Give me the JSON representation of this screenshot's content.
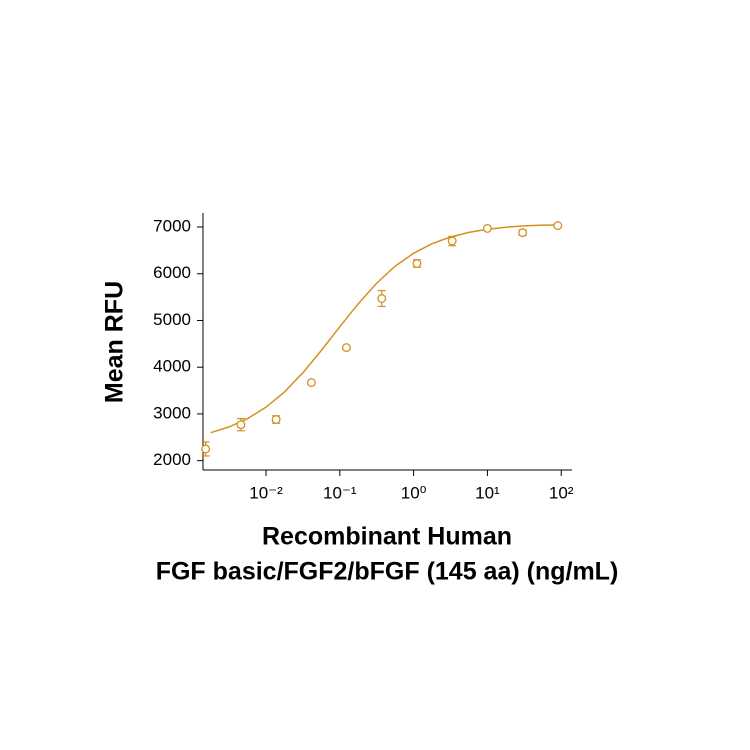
{
  "chart_data": {
    "type": "scatter",
    "ylabel": "Mean RFU",
    "xlabel": [
      "Recombinant Human",
      "FGF basic/FGF2/bFGF (145 aa) (ng/mL)"
    ],
    "xscale": "log",
    "color": "#d4911f",
    "x": [
      0.00152,
      0.00457,
      0.0137,
      0.0412,
      0.123,
      0.37,
      1.11,
      3.33,
      10,
      30,
      90
    ],
    "values": [
      2250,
      2770,
      2880,
      3670,
      4420,
      5470,
      6220,
      6700,
      6970,
      6880,
      7030
    ],
    "errors": [
      150,
      130,
      80,
      30,
      30,
      170,
      80,
      100,
      30,
      60,
      30
    ],
    "fit": {
      "x": [
        0.00178,
        0.00316,
        0.00562,
        0.01,
        0.0178,
        0.0316,
        0.0562,
        0.1,
        0.178,
        0.316,
        0.562,
        1,
        1.78,
        3.16,
        5.62,
        10,
        17.8,
        31.6,
        56.2,
        90
      ],
      "values": [
        2598,
        2722,
        2899,
        3145,
        3472,
        3883,
        4358,
        4866,
        5360,
        5800,
        6161,
        6440,
        6644,
        6787,
        6885,
        6952,
        6996,
        7025,
        7040,
        7044
      ]
    },
    "xlim": [
      0.0014,
      140
    ],
    "xticks": [
      {
        "value": 0.01,
        "label": "10⁻²"
      },
      {
        "value": 0.1,
        "label": "10⁻¹"
      },
      {
        "value": 1,
        "label": "10⁰"
      },
      {
        "value": 10,
        "label": "10¹"
      },
      {
        "value": 100,
        "label": "10²"
      }
    ],
    "ylim": [
      1800,
      7300
    ],
    "yticks": [
      2000,
      3000,
      4000,
      5000,
      6000,
      7000
    ]
  }
}
